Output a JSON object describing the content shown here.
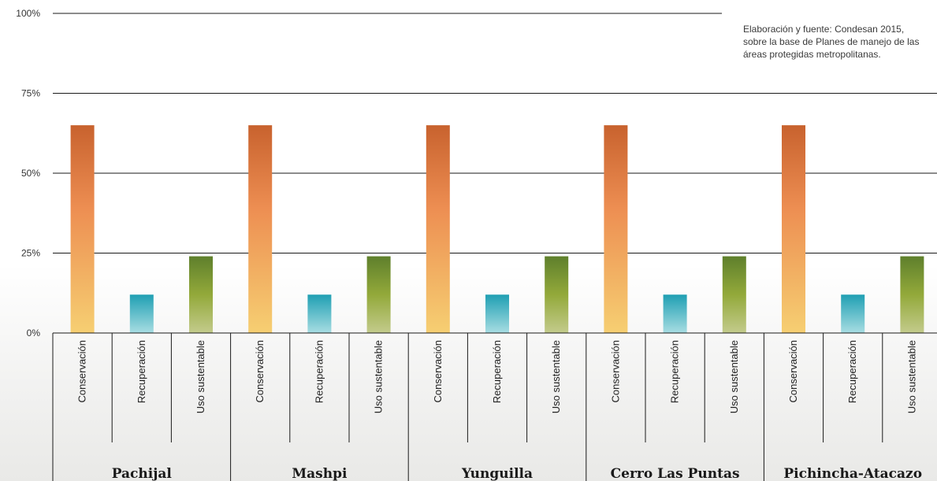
{
  "chart_data": {
    "type": "bar",
    "title": "",
    "xlabel": "",
    "ylabel": "",
    "ylim": [
      0,
      100
    ],
    "yticks": [
      "0%",
      "25%",
      "50%",
      "75%",
      "100%"
    ],
    "grid": true,
    "categories": [
      "Conservación",
      "Recuperación",
      "Uso sustentable"
    ],
    "groups": [
      {
        "name": "Pachijal",
        "values": [
          65,
          12,
          24
        ]
      },
      {
        "name": "Mashpi",
        "values": [
          65,
          12,
          24
        ]
      },
      {
        "name": "Yunguilla",
        "values": [
          65,
          12,
          24
        ]
      },
      {
        "name": "Cerro Las Puntas",
        "values": [
          65,
          12,
          24
        ]
      },
      {
        "name": "Pichincha-Atacazo",
        "values": [
          65,
          12,
          24
        ]
      }
    ],
    "colors": {
      "Conservación": [
        "#c8622e",
        "#ed8e52",
        "#f6cf72"
      ],
      "Recuperación": [
        "#1f9fb3",
        "#a8dde2"
      ],
      "Uso sustentable": [
        "#5e7f2c",
        "#93a93a",
        "#c3cb8c"
      ]
    },
    "source_note": "Elaboración y fuente: Condesan 2015,\nsobre la base de Planes de manejo de las\náreas protegidas metropolitanas."
  }
}
